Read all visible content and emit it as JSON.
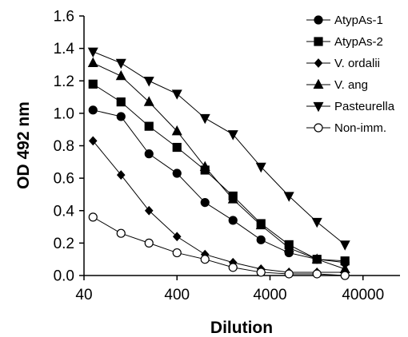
{
  "chart_data": {
    "type": "line",
    "title": "",
    "xlabel": "Dilution",
    "ylabel": "OD 492 nm",
    "x_scale": "log",
    "xlim": [
      40,
      100000
    ],
    "ylim": [
      0,
      1.6
    ],
    "x_ticks": [
      40,
      400,
      4000,
      40000
    ],
    "x_tick_labels": [
      "40",
      "400",
      "4000",
      "40000"
    ],
    "y_ticks": [
      0,
      0.2,
      0.4,
      0.6,
      0.8,
      1.0,
      1.2,
      1.4,
      1.6
    ],
    "y_tick_labels": [
      "0.0",
      "0.2",
      "0.4",
      "0.6",
      "0.8",
      "1.0",
      "1.2",
      "1.4",
      "1.6"
    ],
    "grid": false,
    "legend_position": "top-right",
    "x": [
      50,
      100,
      200,
      400,
      800,
      1600,
      3200,
      6400,
      12800,
      25600
    ],
    "series": [
      {
        "name": "AtypAs-1",
        "marker": "circle-filled",
        "values": [
          1.02,
          0.98,
          0.75,
          0.63,
          0.45,
          0.34,
          0.22,
          0.14,
          0.1,
          0.08
        ]
      },
      {
        "name": "AtypAs-2",
        "marker": "square-filled",
        "values": [
          1.18,
          1.07,
          0.92,
          0.79,
          0.65,
          0.49,
          0.32,
          0.19,
          0.1,
          0.09
        ]
      },
      {
        "name": "V. ordalii",
        "marker": "diamond-filled",
        "values": [
          0.83,
          0.62,
          0.4,
          0.24,
          0.13,
          0.08,
          0.04,
          0.02,
          0.02,
          0.02
        ]
      },
      {
        "name": "V. ang",
        "marker": "triangle-up-filled",
        "values": [
          1.31,
          1.23,
          1.07,
          0.89,
          0.67,
          0.47,
          0.31,
          0.17,
          0.1,
          0.04
        ]
      },
      {
        "name": "Pasteurella",
        "marker": "triangle-down-filled",
        "values": [
          1.38,
          1.31,
          1.2,
          1.12,
          0.97,
          0.87,
          0.67,
          0.49,
          0.33,
          0.19
        ]
      },
      {
        "name": "Non-imm.",
        "marker": "circle-open",
        "values": [
          0.36,
          0.26,
          0.2,
          0.14,
          0.1,
          0.05,
          0.02,
          0.01,
          0.01,
          0.0
        ]
      }
    ]
  }
}
